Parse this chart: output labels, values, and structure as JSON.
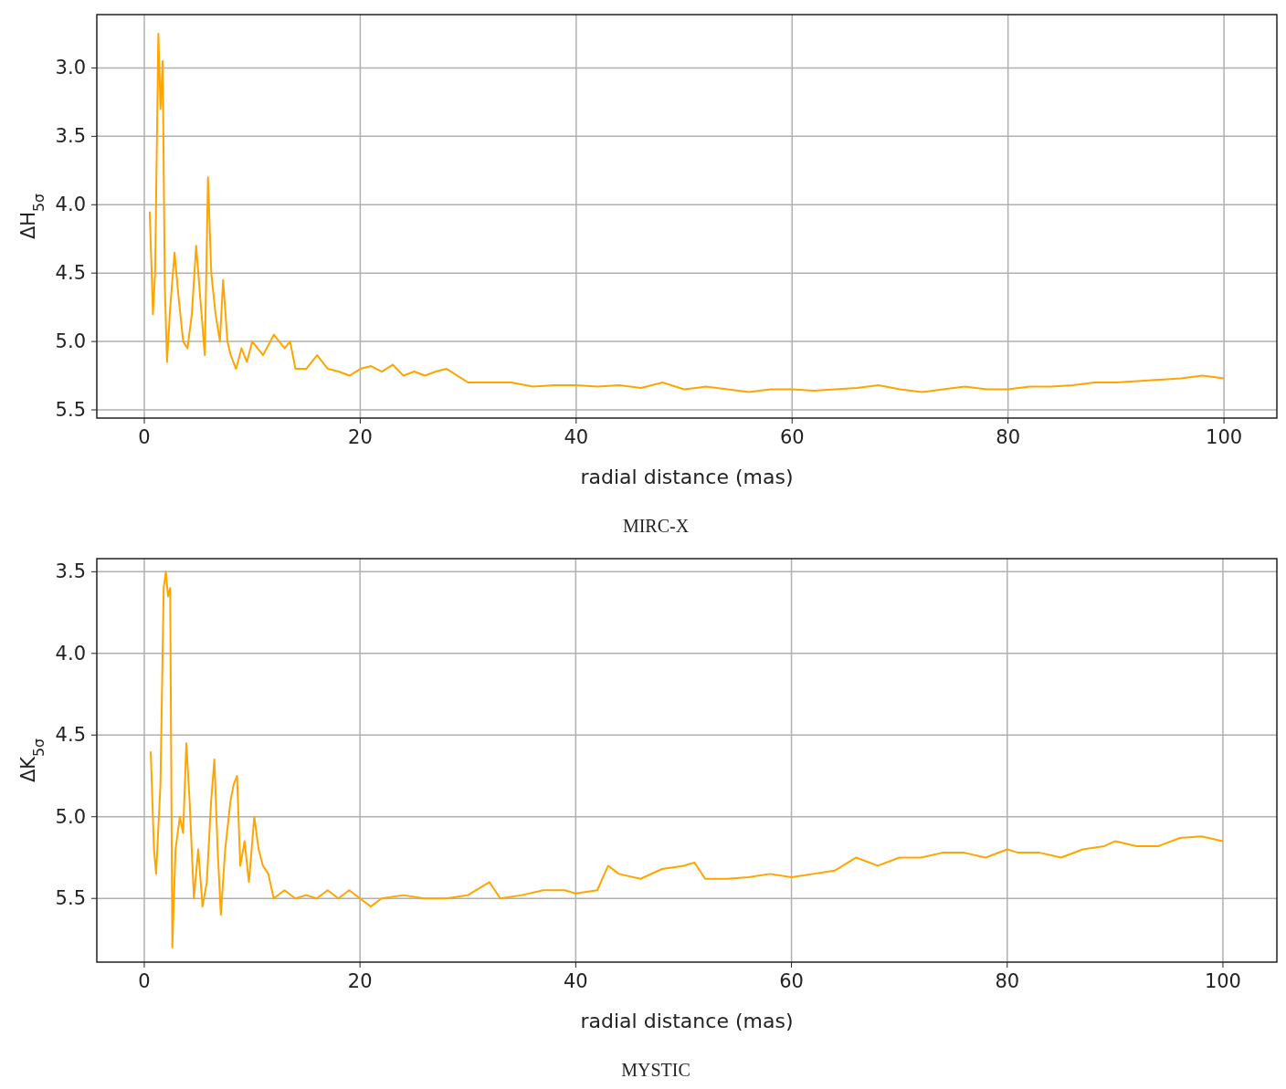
{
  "chart_data": [
    {
      "type": "line",
      "xlabel": "radial distance (mas)",
      "ylabel": "ΔH$_{5σ}$",
      "annotations": [
        "MIRC-X"
      ],
      "grid": true,
      "xlim": [
        -4.4,
        104.9
      ],
      "ylim": [
        5.56,
        2.61
      ],
      "xticks": [
        0,
        20,
        40,
        60,
        80,
        100
      ],
      "yticks": [
        {
          "value": 3,
          "label": "3.0"
        },
        3.5,
        {
          "value": 4,
          "label": "4.0"
        },
        4.5,
        {
          "value": 5,
          "label": "5.0"
        },
        5.5
      ],
      "series": [
        {
          "color": "#ffa500",
          "x": [
            0.5,
            0.8,
            1.0,
            1.3,
            1.5,
            1.7,
            1.9,
            2.1,
            2.4,
            2.8,
            3.2,
            3.6,
            4.0,
            4.4,
            4.8,
            5.2,
            5.6,
            5.9,
            6.2,
            6.6,
            7.0,
            7.3,
            7.7,
            8.0,
            8.5,
            9,
            9.5,
            10,
            11,
            12,
            13,
            13.5,
            14,
            15,
            16,
            17,
            18,
            19,
            20,
            21,
            22,
            23,
            24,
            25,
            26,
            27,
            28,
            29,
            30,
            32,
            34,
            36,
            38,
            40,
            42,
            44,
            46,
            48,
            50,
            52,
            54,
            56,
            58,
            60,
            62,
            64,
            66,
            68,
            70,
            72,
            74,
            76,
            78,
            80,
            82,
            84,
            86,
            88,
            90,
            92,
            94,
            96,
            98,
            100
          ],
          "values": [
            4.05,
            4.8,
            4.5,
            2.75,
            3.3,
            2.95,
            4.6,
            5.15,
            4.75,
            4.35,
            4.7,
            5.0,
            5.05,
            4.8,
            4.3,
            4.7,
            5.1,
            3.8,
            4.5,
            4.8,
            5.0,
            4.55,
            5.0,
            5.1,
            5.2,
            5.05,
            5.15,
            5.0,
            5.1,
            4.95,
            5.05,
            5.0,
            5.2,
            5.2,
            5.1,
            5.2,
            5.22,
            5.25,
            5.2,
            5.18,
            5.22,
            5.17,
            5.25,
            5.22,
            5.25,
            5.22,
            5.2,
            5.25,
            5.3,
            5.3,
            5.3,
            5.33,
            5.32,
            5.32,
            5.33,
            5.32,
            5.34,
            5.3,
            5.35,
            5.33,
            5.35,
            5.37,
            5.35,
            5.35,
            5.36,
            5.35,
            5.34,
            5.32,
            5.35,
            5.37,
            5.35,
            5.33,
            5.35,
            5.35,
            5.33,
            5.33,
            5.32,
            5.3,
            5.3,
            5.29,
            5.28,
            5.27,
            5.25,
            5.27
          ]
        }
      ]
    },
    {
      "type": "line",
      "xlabel": "radial distance (mas)",
      "ylabel": "ΔK$_{5σ}$",
      "annotations": [
        "MYSTIC"
      ],
      "grid": true,
      "xlim": [
        -4.4,
        105
      ],
      "ylim": [
        5.89,
        3.42
      ],
      "xticks": [
        0,
        20,
        40,
        60,
        80,
        100
      ],
      "yticks": [
        3.5,
        {
          "value": 4,
          "label": "4.0"
        },
        4.5,
        {
          "value": 5,
          "label": "5.0"
        },
        5.5
      ],
      "series": [
        {
          "color": "#ffa500",
          "x": [
            0.6,
            0.9,
            1.1,
            1.5,
            1.8,
            2.0,
            2.2,
            2.4,
            2.6,
            2.9,
            3.3,
            3.6,
            3.9,
            4.2,
            4.6,
            5.0,
            5.4,
            5.8,
            6.2,
            6.5,
            6.8,
            7.1,
            7.5,
            8.0,
            8.3,
            8.6,
            8.9,
            9.3,
            9.7,
            10.2,
            10.6,
            11,
            11.5,
            12,
            13,
            14,
            15,
            16,
            17,
            18,
            19,
            20,
            21,
            22,
            24,
            26,
            28,
            30,
            32,
            33,
            35,
            37,
            39,
            40,
            42,
            43,
            44,
            46,
            48,
            50,
            51,
            52,
            54,
            56,
            58,
            60,
            62,
            64,
            66,
            68,
            70,
            72,
            74,
            76,
            78,
            80,
            81,
            83,
            85,
            87,
            89,
            90,
            92,
            94,
            96,
            98,
            100
          ],
          "values": [
            4.6,
            5.2,
            5.35,
            4.8,
            3.6,
            3.5,
            3.65,
            3.6,
            5.8,
            5.2,
            5.0,
            5.1,
            4.55,
            4.9,
            5.5,
            5.2,
            5.55,
            5.4,
            4.9,
            4.65,
            5.2,
            5.6,
            5.2,
            4.9,
            4.8,
            4.75,
            5.3,
            5.15,
            5.4,
            5.0,
            5.2,
            5.3,
            5.35,
            5.5,
            5.45,
            5.5,
            5.48,
            5.5,
            5.45,
            5.5,
            5.45,
            5.5,
            5.55,
            5.5,
            5.48,
            5.5,
            5.5,
            5.48,
            5.4,
            5.5,
            5.48,
            5.45,
            5.45,
            5.47,
            5.45,
            5.3,
            5.35,
            5.38,
            5.32,
            5.3,
            5.28,
            5.38,
            5.38,
            5.37,
            5.35,
            5.37,
            5.35,
            5.33,
            5.25,
            5.3,
            5.25,
            5.25,
            5.22,
            5.22,
            5.25,
            5.2,
            5.22,
            5.22,
            5.25,
            5.2,
            5.18,
            5.15,
            5.18,
            5.18,
            5.13,
            5.12,
            5.15
          ]
        }
      ]
    }
  ]
}
